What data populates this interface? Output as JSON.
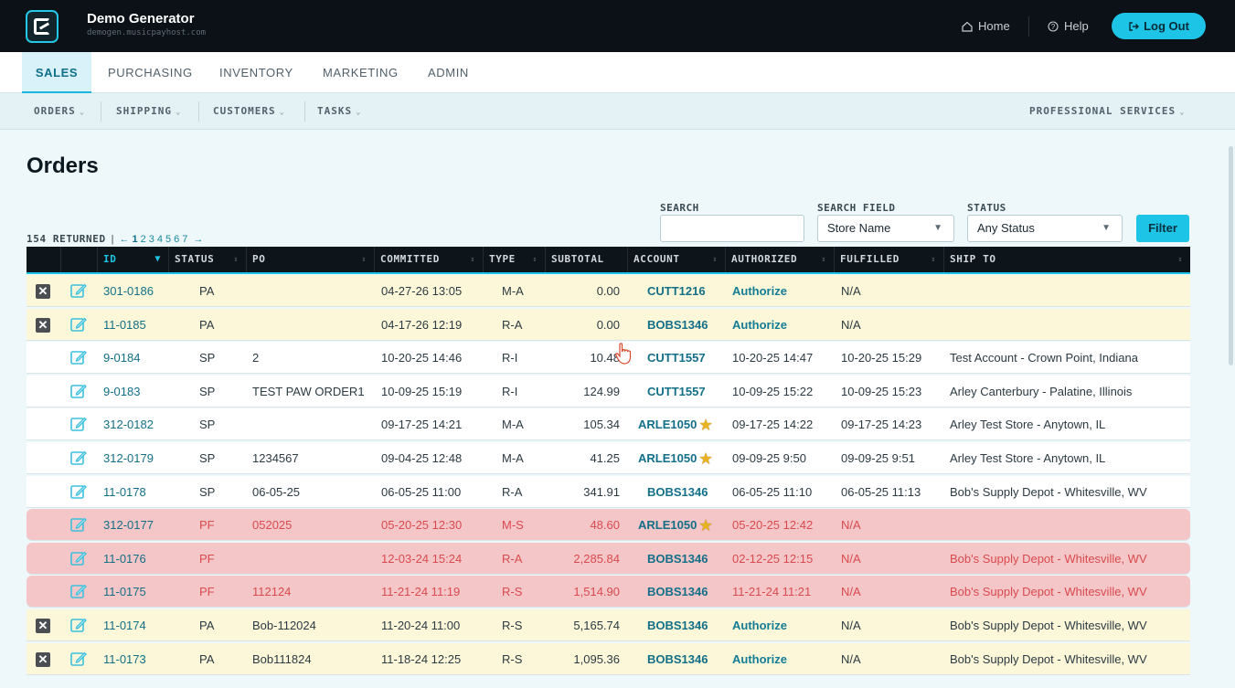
{
  "header": {
    "app_title": "Demo Generator",
    "app_subtitle": "demogen.musicpayhost.com",
    "home_label": "Home",
    "help_label": "Help",
    "logout_label": "Log Out"
  },
  "main_tabs": [
    "SALES",
    "PURCHASING",
    "INVENTORY",
    "MARKETING",
    "ADMIN"
  ],
  "active_main_tab": "SALES",
  "sub_tabs": [
    "ORDERS",
    "SHIPPING",
    "CUSTOMERS",
    "TASKS"
  ],
  "sub_tab_right": "PROFESSIONAL SERVICES",
  "page_title": "Orders",
  "filters": {
    "search_label": "SEARCH",
    "search_value": "",
    "search_field_label": "SEARCH FIELD",
    "search_field_value": "Store Name",
    "status_label": "STATUS",
    "status_value": "Any Status",
    "filter_button": "Filter"
  },
  "pagination": {
    "count": "154 RETURNED",
    "prev": "←",
    "next": "→",
    "pages": [
      "1",
      "2",
      "3",
      "4",
      "5",
      "6",
      "7"
    ],
    "current": "1"
  },
  "columns": [
    "ID",
    "STATUS",
    "PO",
    "COMMITTED",
    "TYPE",
    "SUBTOTAL",
    "ACCOUNT",
    "AUTHORIZED",
    "FULFILLED",
    "SHIP TO"
  ],
  "rows": [
    {
      "id": "301-0186",
      "status": "PA",
      "po": "",
      "committed": "04-27-26 13:05",
      "type": "M-A",
      "subtotal": "0.00",
      "account": "CUTT1216",
      "star": false,
      "authorized": "Authorize",
      "fulfilled": "N/A",
      "ship_to": "",
      "deletable": true
    },
    {
      "id": "11-0185",
      "status": "PA",
      "po": "",
      "committed": "04-17-26 12:19",
      "type": "R-A",
      "subtotal": "0.00",
      "account": "BOBS1346",
      "star": false,
      "authorized": "Authorize",
      "fulfilled": "N/A",
      "ship_to": "",
      "deletable": true
    },
    {
      "id": "9-0184",
      "status": "SP",
      "po": "2",
      "committed": "10-20-25 14:46",
      "type": "R-I",
      "subtotal": "10.48",
      "account": "CUTT1557",
      "star": false,
      "authorized": "10-20-25 14:47",
      "fulfilled": "10-20-25 15:29",
      "ship_to": "Test Account - Crown Point, Indiana",
      "deletable": false
    },
    {
      "id": "9-0183",
      "status": "SP",
      "po": "TEST PAW ORDER1",
      "committed": "10-09-25 15:19",
      "type": "R-I",
      "subtotal": "124.99",
      "account": "CUTT1557",
      "star": false,
      "authorized": "10-09-25 15:22",
      "fulfilled": "10-09-25 15:23",
      "ship_to": "Arley Canterbury - Palatine, Illinois",
      "deletable": false
    },
    {
      "id": "312-0182",
      "status": "SP",
      "po": "",
      "committed": "09-17-25 14:21",
      "type": "M-A",
      "subtotal": "105.34",
      "account": "ARLE1050",
      "star": true,
      "authorized": "09-17-25 14:22",
      "fulfilled": "09-17-25 14:23",
      "ship_to": "Arley Test Store - Anytown, IL",
      "deletable": false
    },
    {
      "id": "312-0179",
      "status": "SP",
      "po": "1234567",
      "committed": "09-04-25 12:48",
      "type": "M-A",
      "subtotal": "41.25",
      "account": "ARLE1050",
      "star": true,
      "authorized": "09-09-25 9:50",
      "fulfilled": "09-09-25 9:51",
      "ship_to": "Arley Test Store - Anytown, IL",
      "deletable": false
    },
    {
      "id": "11-0178",
      "status": "SP",
      "po": "06-05-25",
      "committed": "06-05-25 11:00",
      "type": "R-A",
      "subtotal": "341.91",
      "account": "BOBS1346",
      "star": false,
      "authorized": "06-05-25 11:10",
      "fulfilled": "06-05-25 11:13",
      "ship_to": "Bob's Supply Depot - Whitesville, WV",
      "deletable": false
    },
    {
      "id": "312-0177",
      "status": "PF",
      "po": "052025",
      "committed": "05-20-25 12:30",
      "type": "M-S",
      "subtotal": "48.60",
      "account": "ARLE1050",
      "star": true,
      "authorized": "05-20-25 12:42",
      "fulfilled": "N/A",
      "ship_to": "",
      "deletable": false
    },
    {
      "id": "11-0176",
      "status": "PF",
      "po": "",
      "committed": "12-03-24 15:24",
      "type": "R-A",
      "subtotal": "2,285.84",
      "account": "BOBS1346",
      "star": false,
      "authorized": "02-12-25 12:15",
      "fulfilled": "N/A",
      "ship_to": "Bob's Supply Depot - Whitesville, WV",
      "deletable": false
    },
    {
      "id": "11-0175",
      "status": "PF",
      "po": "112124",
      "committed": "11-21-24 11:19",
      "type": "R-S",
      "subtotal": "1,514.90",
      "account": "BOBS1346",
      "star": false,
      "authorized": "11-21-24 11:21",
      "fulfilled": "N/A",
      "ship_to": "Bob's Supply Depot - Whitesville, WV",
      "deletable": false
    },
    {
      "id": "11-0174",
      "status": "PA",
      "po": "Bob-112024",
      "committed": "11-20-24 11:00",
      "type": "R-S",
      "subtotal": "5,165.74",
      "account": "BOBS1346",
      "star": false,
      "authorized": "Authorize",
      "fulfilled": "N/A",
      "ship_to": "Bob's Supply Depot - Whitesville, WV",
      "deletable": true
    },
    {
      "id": "11-0173",
      "status": "PA",
      "po": "Bob111824",
      "committed": "11-18-24 12:25",
      "type": "R-S",
      "subtotal": "1,095.36",
      "account": "BOBS1346",
      "star": false,
      "authorized": "Authorize",
      "fulfilled": "N/A",
      "ship_to": "Bob's Supply Depot - Whitesville, WV",
      "deletable": true
    }
  ],
  "colors": {
    "accent": "#1dc4e6",
    "header_bg": "#0b1116",
    "pending_row": "#fdf7d9",
    "failed_row": "#f5c6c8",
    "link": "#137c95"
  }
}
